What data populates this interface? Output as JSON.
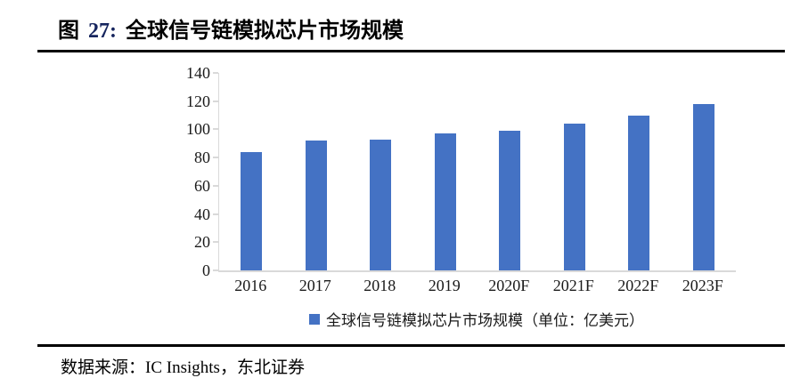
{
  "header": {
    "fig_label": "图",
    "fig_number": "27:",
    "title": "全球信号链模拟芯片市场规模"
  },
  "chart_data": {
    "type": "bar",
    "title": "",
    "categories": [
      "2016",
      "2017",
      "2018",
      "2019",
      "2020F",
      "2021F",
      "2022F",
      "2023F"
    ],
    "values": [
      84,
      92,
      93,
      97,
      99,
      104,
      110,
      118
    ],
    "series_name": "全球信号链模拟芯片市场规模（单位：亿美元）",
    "xlabel": "",
    "ylabel": "",
    "ylim": [
      0,
      140
    ],
    "yticks": [
      0,
      20,
      40,
      60,
      80,
      100,
      120,
      140
    ],
    "grid": false,
    "legend_position": "bottom-center",
    "bar_color": "#4472C4",
    "axis_color": "#D9D9D9"
  },
  "legend": {
    "label": "全球信号链模拟芯片市场规模（单位：亿美元）"
  },
  "footer": {
    "source_prefix": "数据来源：",
    "source_text": "IC Insights，东北证券"
  }
}
